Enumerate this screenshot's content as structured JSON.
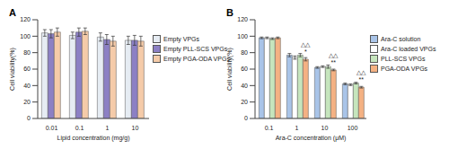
{
  "chart_data": [
    {
      "type": "bar",
      "title": "A",
      "x_label": "Lipid concentration (mg/g)",
      "y_label": "Cell viability(%)",
      "categories": [
        "0.01",
        "0.1",
        "1",
        "10"
      ],
      "series": [
        {
          "name": "Empty VPGs",
          "color": "#e6ecf3",
          "values": [
            104,
            101,
            99,
            95
          ],
          "errors": [
            4,
            4,
            5,
            5
          ]
        },
        {
          "name": "Empty PLL-SCS VPGs",
          "color": "#8c80c4",
          "values": [
            103,
            105,
            96,
            95
          ],
          "errors": [
            5,
            5,
            6,
            6
          ]
        },
        {
          "name": "Empty PGA-ODA VPGs",
          "color": "#f5cba9",
          "values": [
            105,
            106,
            94,
            94
          ],
          "errors": [
            5,
            4,
            6,
            6
          ]
        }
      ],
      "ylim": [
        0,
        120
      ],
      "yticks": [
        0,
        20,
        40,
        60,
        80,
        100,
        120
      ],
      "grid": false,
      "legend": "right"
    },
    {
      "type": "bar",
      "title": "B",
      "x_label": "Ara-C concentration (μM)",
      "y_label": "Cell viability(%)",
      "categories": [
        "0.1",
        "1",
        "10",
        "100"
      ],
      "series": [
        {
          "name": "Ara-C solution",
          "color": "#a9c4e8",
          "values": [
            98,
            77,
            62,
            42
          ],
          "errors": [
            1,
            2,
            1,
            1
          ]
        },
        {
          "name": "Ara-C loaded VPGs",
          "color": "#ffffff",
          "values": [
            98,
            74,
            63,
            41
          ],
          "errors": [
            1,
            2,
            1,
            1
          ]
        },
        {
          "name": "PLL-SCS VPGs",
          "color": "#c6e5bd",
          "values": [
            97,
            77,
            63,
            43
          ],
          "errors": [
            1,
            2,
            2,
            1
          ]
        },
        {
          "name": "PGA-ODA VPGs",
          "color": "#f4b183",
          "values": [
            98,
            72,
            59,
            38
          ],
          "errors": [
            1,
            2,
            1,
            1
          ]
        }
      ],
      "annotations": [
        {
          "category": "1",
          "series": "PGA-ODA VPGs",
          "text": "*"
        },
        {
          "category": "1",
          "series": "PGA-ODA VPGs",
          "text": "△△"
        },
        {
          "category": "10",
          "series": "PGA-ODA VPGs",
          "text": "**"
        },
        {
          "category": "10",
          "series": "PGA-ODA VPGs",
          "text": "△△"
        },
        {
          "category": "100",
          "series": "PGA-ODA VPGs",
          "text": "**"
        },
        {
          "category": "100",
          "series": "PGA-ODA VPGs",
          "text": "△△"
        }
      ],
      "ylim": [
        0,
        120
      ],
      "yticks": [
        0,
        20,
        40,
        60,
        80,
        100,
        120
      ],
      "grid": false,
      "legend": "right"
    }
  ]
}
